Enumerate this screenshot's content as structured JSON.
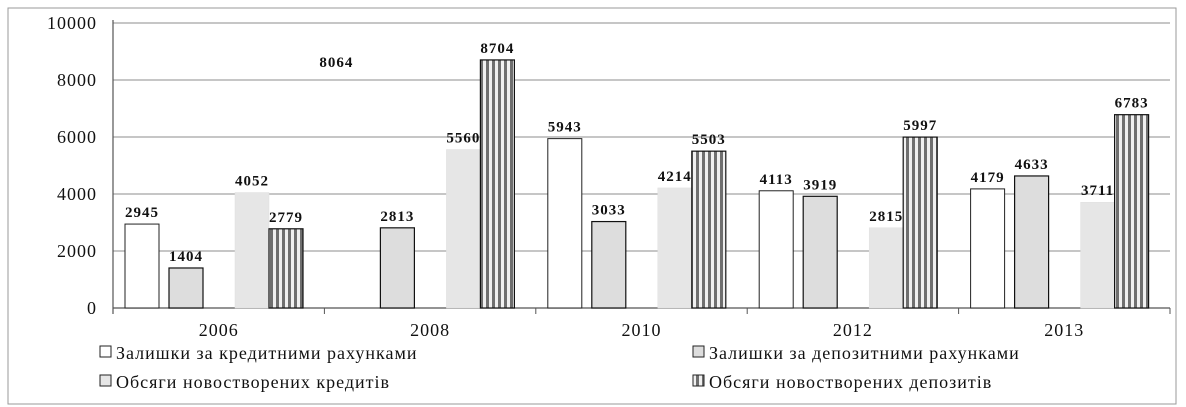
{
  "chart_data": {
    "type": "bar",
    "categories": [
      "2006",
      "2008",
      "2010",
      "2012",
      "2013"
    ],
    "ylim": [
      0,
      10000
    ],
    "yticks": [
      "0",
      "2000",
      "4000",
      "6000",
      "8000",
      "10000"
    ],
    "grid": true,
    "legend_position": "bottom",
    "series": [
      {
        "name": "Залишки за кредитними рахунками",
        "values": [
          2945,
          8064,
          5943,
          4113,
          4179
        ],
        "labels": [
          "2945",
          "8064",
          "5943",
          "4113",
          "4179"
        ],
        "pattern": "white",
        "color": "#ffffff"
      },
      {
        "name": "Залишки за депозитними рахунками",
        "values": [
          1404,
          2813,
          3033,
          3919,
          4633
        ],
        "labels": [
          "1404",
          "2813",
          "3033",
          "3919",
          "4633"
        ],
        "pattern": "metal",
        "color": "#555555"
      },
      {
        "name": "Обсяги новостворених кредитів",
        "values": [
          4052,
          5560,
          4214,
          2815,
          3711
        ],
        "labels": [
          "4052",
          "5560",
          "4214",
          "2815",
          "3711"
        ],
        "pattern": "light",
        "color": "#e6e6e6"
      },
      {
        "name": "Обсяги новостворених депозитів",
        "values": [
          2779,
          8704,
          5503,
          5997,
          6783
        ],
        "labels": [
          "2779",
          "8704",
          "5503",
          "5997",
          "6783"
        ],
        "pattern": "stripes",
        "color": "#8a8a8a"
      }
    ]
  }
}
